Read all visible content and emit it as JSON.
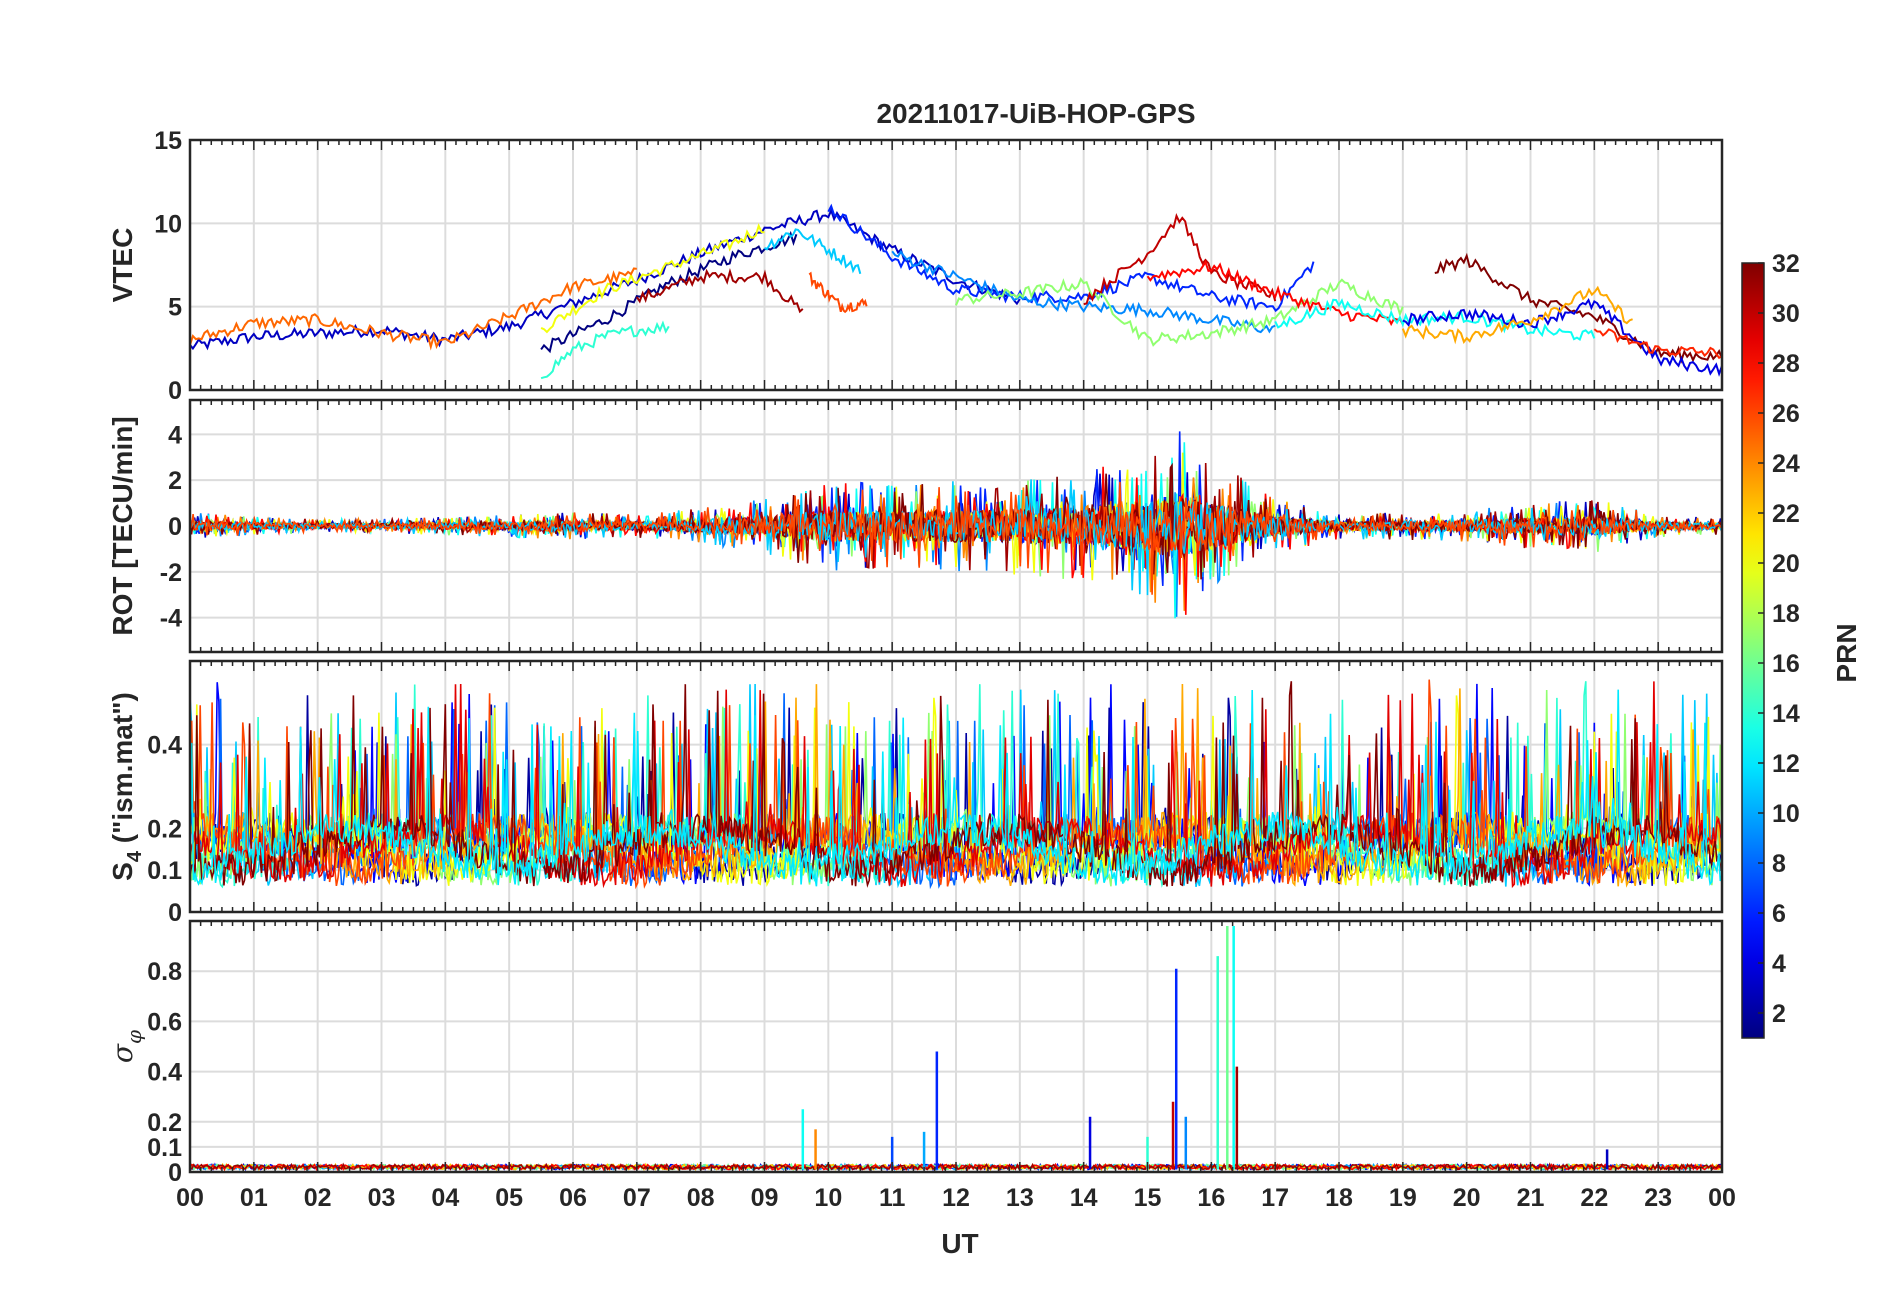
{
  "chart_data": {
    "title": "20211017-UiB-HOP-GPS",
    "type": "line",
    "x_axis": {
      "label": "UT",
      "range": [
        0,
        24
      ],
      "tick_labels": [
        "00",
        "01",
        "02",
        "03",
        "04",
        "05",
        "06",
        "07",
        "08",
        "09",
        "10",
        "11",
        "12",
        "13",
        "14",
        "15",
        "16",
        "17",
        "18",
        "19",
        "20",
        "21",
        "22",
        "23",
        "00"
      ]
    },
    "colorbar": {
      "label": "PRN",
      "range": [
        1,
        32
      ],
      "colormap": "jet",
      "tick_values": [
        2,
        4,
        6,
        8,
        10,
        12,
        14,
        16,
        18,
        20,
        22,
        24,
        26,
        28,
        30,
        32
      ],
      "tick_labels": [
        "2",
        "4",
        "6",
        "8",
        "10",
        "12",
        "14",
        "16",
        "18",
        "20",
        "22",
        "24",
        "26",
        "28",
        "30",
        "32"
      ]
    },
    "panels": [
      {
        "id": "vtec",
        "ylabel": "VTEC",
        "ylim": [
          0,
          15
        ],
        "y_ticks": [
          0,
          5,
          10,
          15
        ],
        "y_tick_labels": [
          "0",
          "5",
          "10",
          "15"
        ],
        "grid": true,
        "series": [
          {
            "prn": 3,
            "x": [
              0,
              1,
              2,
              3,
              4,
              5,
              6,
              7,
              8,
              9,
              10,
              11,
              12,
              13
            ],
            "y": [
              2.6,
              3.2,
              3.4,
              3.6,
              3.0,
              3.8,
              5.2,
              6.6,
              8.2,
              9.6,
              10.6,
              8.4,
              6.6,
              5.4
            ]
          },
          {
            "prn": 1,
            "x": [
              5.5,
              6.5,
              7.5,
              8.5,
              9.5
            ],
            "y": [
              2.4,
              4.2,
              6.4,
              8.0,
              9.2
            ]
          },
          {
            "prn": 20,
            "x": [
              5.5,
              6.5,
              7.5,
              8.5,
              9.0
            ],
            "y": [
              3.6,
              6.0,
              7.4,
              8.8,
              9.8
            ]
          },
          {
            "prn": 31,
            "x": [
              7.0,
              8.0,
              9.0,
              9.6
            ],
            "y": [
              5.4,
              6.8,
              6.8,
              4.6
            ]
          },
          {
            "prn": 25,
            "x": [
              0,
              1,
              2,
              3,
              4,
              5,
              6,
              7
            ],
            "y": [
              3.0,
              4.0,
              4.2,
              3.4,
              2.8,
              4.4,
              6.2,
              7.0
            ]
          },
          {
            "prn": 14,
            "x": [
              5.5,
              6.0,
              6.5,
              7.0,
              7.5
            ],
            "y": [
              0.8,
              2.4,
              3.2,
              3.6,
              3.8
            ]
          },
          {
            "prn": 11,
            "x": [
              9.0,
              9.5,
              10.0,
              10.5
            ],
            "y": [
              8.6,
              9.6,
              8.4,
              7.2
            ]
          },
          {
            "prn": 26,
            "x": [
              9.7,
              10.2,
              10.6
            ],
            "y": [
              6.8,
              5.0,
              5.2
            ]
          },
          {
            "prn": 6,
            "x": [
              10,
              11,
              12,
              13,
              14,
              15,
              16,
              17,
              17.6
            ],
            "y": [
              11.0,
              8.0,
              6.0,
              5.6,
              5.6,
              6.8,
              5.6,
              5.0,
              7.6
            ]
          },
          {
            "prn": 9,
            "x": [
              11,
              12,
              13,
              14,
              15,
              16,
              17
            ],
            "y": [
              8.2,
              6.8,
              5.4,
              5.0,
              4.8,
              4.2,
              3.6
            ]
          },
          {
            "prn": 17,
            "x": [
              12,
              13,
              14,
              15,
              16,
              17,
              18,
              19
            ],
            "y": [
              5.4,
              5.8,
              6.4,
              3.0,
              3.4,
              4.2,
              6.4,
              4.8
            ]
          },
          {
            "prn": 30,
            "x": [
              14,
              15,
              15.5,
              16,
              17
            ],
            "y": [
              5.4,
              8.2,
              10.4,
              7.0,
              5.6
            ]
          },
          {
            "prn": 28,
            "x": [
              15,
              16,
              17,
              18,
              19
            ],
            "y": [
              6.8,
              7.4,
              5.8,
              4.6,
              4.0
            ]
          },
          {
            "prn": 32,
            "x": [
              19.5,
              20,
              21,
              22,
              23,
              24
            ],
            "y": [
              7.2,
              7.8,
              5.4,
              4.4,
              2.2,
              2.0
            ]
          },
          {
            "prn": 13,
            "x": [
              17,
              18,
              19,
              20,
              21,
              22
            ],
            "y": [
              3.8,
              5.2,
              4.2,
              4.4,
              3.6,
              3.2
            ]
          },
          {
            "prn": 4,
            "x": [
              19,
              20,
              21,
              22,
              23,
              24
            ],
            "y": [
              4.2,
              4.6,
              4.0,
              5.2,
              1.8,
              1.2
            ]
          },
          {
            "prn": 23,
            "x": [
              19,
              20,
              21,
              22,
              22.6
            ],
            "y": [
              3.6,
              3.2,
              4.2,
              6.0,
              4.0
            ]
          },
          {
            "prn": 27,
            "x": [
              22,
              23,
              24
            ],
            "y": [
              3.6,
              2.4,
              2.2
            ]
          }
        ]
      },
      {
        "id": "rot",
        "ylabel": "ROT [TECU/min]",
        "ylim": [
          -5.5,
          5.5
        ],
        "y_ticks": [
          -4,
          -2,
          0,
          2,
          4
        ],
        "y_tick_labels": [
          "-4",
          "-2",
          "0",
          "2",
          "4"
        ],
        "grid": true,
        "envelope": {
          "x": [
            0,
            1,
            2,
            3,
            4,
            5,
            6,
            7,
            8,
            9,
            10,
            11,
            12,
            13,
            14,
            15,
            15.5,
            16,
            17,
            18,
            19,
            20,
            21,
            22,
            23,
            24
          ],
          "amplitude": [
            0.6,
            0.4,
            0.3,
            0.3,
            0.4,
            0.5,
            0.6,
            0.5,
            0.8,
            1.2,
            2.0,
            1.8,
            2.0,
            2.2,
            2.4,
            3.2,
            4.2,
            3.0,
            1.2,
            0.6,
            0.6,
            0.7,
            1.0,
            1.2,
            0.5,
            0.4
          ]
        }
      },
      {
        "id": "s4",
        "ylabel": "S4 (\"ism.mat\")",
        "ylabel_main": "S",
        "ylabel_sub": "4",
        "ylabel_rest": " (\"ism.mat\")",
        "ylim": [
          0,
          0.6
        ],
        "y_ticks": [
          0,
          0.1,
          0.2,
          0.4
        ],
        "y_tick_labels": [
          "0",
          "0.1",
          "0.2",
          "0.4"
        ],
        "grid": true,
        "baseline": 0.08
      },
      {
        "id": "sigma_phi",
        "ylabel": "σφ",
        "ylabel_main": "σ",
        "ylabel_sub": "φ",
        "ylim": [
          0,
          1.0
        ],
        "y_ticks": [
          0,
          0.1,
          0.2,
          0.4,
          0.6,
          0.8
        ],
        "y_tick_labels": [
          "0",
          "0.1",
          "0.2",
          "0.4",
          "0.6",
          "0.8"
        ],
        "grid": true,
        "spikes": [
          {
            "prn": 13,
            "x": 9.6,
            "y": 0.25
          },
          {
            "prn": 24,
            "x": 9.8,
            "y": 0.17
          },
          {
            "prn": 7,
            "x": 11.0,
            "y": 0.14
          },
          {
            "prn": 10,
            "x": 11.5,
            "y": 0.16
          },
          {
            "prn": 6,
            "x": 11.7,
            "y": 0.48
          },
          {
            "prn": 4,
            "x": 14.1,
            "y": 0.22
          },
          {
            "prn": 14,
            "x": 15.0,
            "y": 0.14
          },
          {
            "prn": 30,
            "x": 15.4,
            "y": 0.28
          },
          {
            "prn": 6,
            "x": 15.45,
            "y": 0.81
          },
          {
            "prn": 9,
            "x": 15.6,
            "y": 0.22
          },
          {
            "prn": 14,
            "x": 16.1,
            "y": 0.86
          },
          {
            "prn": 16,
            "x": 16.25,
            "y": 0.98
          },
          {
            "prn": 13,
            "x": 16.35,
            "y": 0.98
          },
          {
            "prn": 31,
            "x": 16.4,
            "y": 0.42
          },
          {
            "prn": 3,
            "x": 22.2,
            "y": 0.09
          }
        ]
      }
    ]
  }
}
